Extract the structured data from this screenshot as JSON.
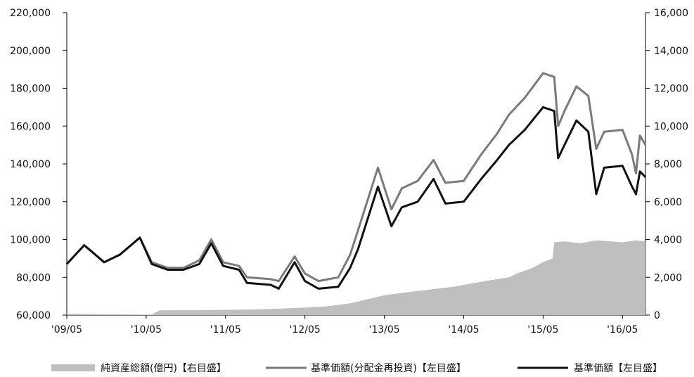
{
  "chart_data": {
    "type": "line",
    "left_axis": {
      "ticks": [
        "220,000",
        "200,000",
        "180,000",
        "160,000",
        "140,000",
        "120,000",
        "100,000",
        "80,000",
        "60,000"
      ],
      "range": [
        60000,
        220000
      ]
    },
    "right_axis": {
      "ticks": [
        "16,000",
        "14,000",
        "12,000",
        "10,000",
        "8,000",
        "6,000",
        "4,000",
        "2,000",
        "0"
      ],
      "range": [
        0,
        16000
      ]
    },
    "x_ticks": [
      "'09/05",
      "'10/05",
      "'11/05",
      "'12/05",
      "'13/05",
      "'14/05",
      "'15/05",
      "'16/05"
    ],
    "x_range": [
      2009.33,
      2016.62
    ],
    "series": [
      {
        "name": "純資産総額(億円)【右目盛】",
        "kind": "area",
        "axis": "right",
        "color": "#bfbfbf",
        "points": [
          [
            2009.33,
            80
          ],
          [
            2009.6,
            60
          ],
          [
            2010.0,
            40
          ],
          [
            2010.4,
            30
          ],
          [
            2010.5,
            250
          ],
          [
            2011.0,
            260
          ],
          [
            2011.33,
            280
          ],
          [
            2011.7,
            300
          ],
          [
            2012.0,
            340
          ],
          [
            2012.33,
            400
          ],
          [
            2012.6,
            460
          ],
          [
            2012.9,
            620
          ],
          [
            2013.1,
            820
          ],
          [
            2013.33,
            1050
          ],
          [
            2013.6,
            1200
          ],
          [
            2013.9,
            1350
          ],
          [
            2014.2,
            1500
          ],
          [
            2014.33,
            1600
          ],
          [
            2014.6,
            1800
          ],
          [
            2014.9,
            2000
          ],
          [
            2015.0,
            2200
          ],
          [
            2015.2,
            2500
          ],
          [
            2015.33,
            2800
          ],
          [
            2015.45,
            3000
          ],
          [
            2015.47,
            3850
          ],
          [
            2015.6,
            3900
          ],
          [
            2015.8,
            3800
          ],
          [
            2016.0,
            3950
          ],
          [
            2016.2,
            3900
          ],
          [
            2016.33,
            3850
          ],
          [
            2016.5,
            3950
          ],
          [
            2016.62,
            3900
          ]
        ]
      },
      {
        "name": "基準価額(分配金再投資)【左目盛】",
        "kind": "line",
        "axis": "left",
        "color": "#7a7a7a",
        "points": [
          [
            2009.33,
            87000
          ],
          [
            2009.55,
            97000
          ],
          [
            2009.8,
            88000
          ],
          [
            2010.0,
            92000
          ],
          [
            2010.25,
            101000
          ],
          [
            2010.4,
            88000
          ],
          [
            2010.6,
            85000
          ],
          [
            2010.8,
            85000
          ],
          [
            2011.0,
            89000
          ],
          [
            2011.15,
            100000
          ],
          [
            2011.3,
            88000
          ],
          [
            2011.5,
            86000
          ],
          [
            2011.6,
            80000
          ],
          [
            2011.9,
            79000
          ],
          [
            2012.0,
            78000
          ],
          [
            2012.2,
            91000
          ],
          [
            2012.33,
            82000
          ],
          [
            2012.5,
            78000
          ],
          [
            2012.75,
            80000
          ],
          [
            2012.9,
            92000
          ],
          [
            2013.0,
            105000
          ],
          [
            2013.25,
            138000
          ],
          [
            2013.42,
            116000
          ],
          [
            2013.55,
            127000
          ],
          [
            2013.75,
            131000
          ],
          [
            2013.95,
            142000
          ],
          [
            2014.1,
            130000
          ],
          [
            2014.33,
            131000
          ],
          [
            2014.55,
            145000
          ],
          [
            2014.75,
            156000
          ],
          [
            2014.9,
            166000
          ],
          [
            2015.1,
            175000
          ],
          [
            2015.33,
            188000
          ],
          [
            2015.47,
            186000
          ],
          [
            2015.52,
            160000
          ],
          [
            2015.6,
            168000
          ],
          [
            2015.75,
            181000
          ],
          [
            2015.9,
            176000
          ],
          [
            2016.0,
            148000
          ],
          [
            2016.1,
            157000
          ],
          [
            2016.33,
            158000
          ],
          [
            2016.45,
            145000
          ],
          [
            2016.5,
            135000
          ],
          [
            2016.55,
            155000
          ],
          [
            2016.62,
            150000
          ]
        ]
      },
      {
        "name": "基準価額【左目盛】",
        "kind": "line",
        "axis": "left",
        "color": "#111111",
        "points": [
          [
            2009.33,
            87000
          ],
          [
            2009.55,
            97000
          ],
          [
            2009.8,
            88000
          ],
          [
            2010.0,
            92000
          ],
          [
            2010.25,
            101000
          ],
          [
            2010.4,
            87000
          ],
          [
            2010.6,
            84000
          ],
          [
            2010.8,
            84000
          ],
          [
            2011.0,
            87000
          ],
          [
            2011.15,
            98000
          ],
          [
            2011.3,
            86000
          ],
          [
            2011.5,
            84000
          ],
          [
            2011.6,
            77000
          ],
          [
            2011.9,
            76000
          ],
          [
            2012.0,
            74000
          ],
          [
            2012.2,
            88000
          ],
          [
            2012.33,
            78000
          ],
          [
            2012.5,
            74000
          ],
          [
            2012.75,
            75000
          ],
          [
            2012.9,
            85000
          ],
          [
            2013.0,
            95000
          ],
          [
            2013.25,
            128000
          ],
          [
            2013.42,
            107000
          ],
          [
            2013.55,
            117000
          ],
          [
            2013.75,
            120000
          ],
          [
            2013.95,
            132000
          ],
          [
            2014.1,
            119000
          ],
          [
            2014.33,
            120000
          ],
          [
            2014.55,
            132000
          ],
          [
            2014.75,
            142000
          ],
          [
            2014.9,
            150000
          ],
          [
            2015.1,
            158000
          ],
          [
            2015.33,
            170000
          ],
          [
            2015.47,
            168000
          ],
          [
            2015.52,
            143000
          ],
          [
            2015.6,
            150000
          ],
          [
            2015.75,
            163000
          ],
          [
            2015.9,
            157000
          ],
          [
            2016.0,
            124000
          ],
          [
            2016.1,
            138000
          ],
          [
            2016.33,
            139000
          ],
          [
            2016.45,
            128000
          ],
          [
            2016.5,
            124000
          ],
          [
            2016.55,
            136000
          ],
          [
            2016.62,
            133000
          ]
        ]
      }
    ]
  }
}
